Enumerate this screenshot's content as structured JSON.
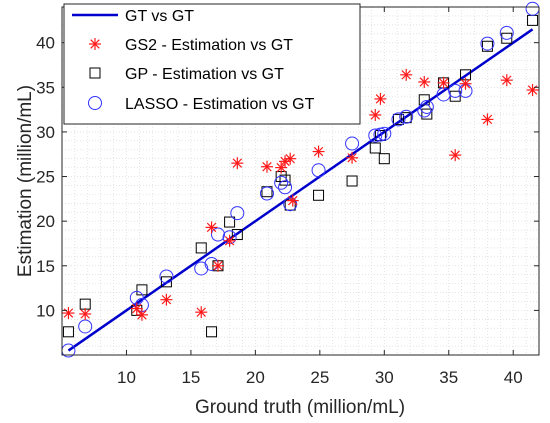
{
  "chart_data": {
    "type": "scatter",
    "xlabel": "Ground truth (million/mL)",
    "ylabel": "Estimation (million/mL)",
    "xlim": [
      5,
      42
    ],
    "ylim": [
      5,
      44
    ],
    "xticks": [
      10,
      15,
      20,
      25,
      30,
      35,
      40
    ],
    "yticks": [
      10,
      15,
      20,
      25,
      30,
      35,
      40
    ],
    "grid": "dotted",
    "legend_position": "top-left",
    "colors": {
      "gt": "#0000cc",
      "gs2": "#ff1a1a",
      "gp": "#000000",
      "lasso": "#3333ff"
    },
    "series": [
      {
        "name": "GT vs GT",
        "kind": "line",
        "x": [
          5.5,
          41.5
        ],
        "y": [
          5.5,
          41.5
        ]
      },
      {
        "name": "GS2 - Estimation vs GT",
        "kind": "asterisk",
        "points": [
          [
            5.5,
            9.7
          ],
          [
            6.8,
            9.6
          ],
          [
            10.8,
            10.2
          ],
          [
            11.2,
            9.5
          ],
          [
            13.1,
            11.2
          ],
          [
            15.8,
            9.8
          ],
          [
            16.6,
            19.3
          ],
          [
            17.1,
            15.0
          ],
          [
            18.0,
            17.8
          ],
          [
            18.6,
            26.5
          ],
          [
            20.9,
            26.1
          ],
          [
            22.0,
            26.0
          ],
          [
            22.3,
            26.7
          ],
          [
            22.7,
            27.0
          ],
          [
            22.9,
            22.3
          ],
          [
            24.9,
            27.8
          ],
          [
            27.5,
            27.1
          ],
          [
            29.3,
            31.9
          ],
          [
            29.7,
            33.7
          ],
          [
            31.7,
            36.4
          ],
          [
            33.1,
            35.6
          ],
          [
            34.6,
            35.5
          ],
          [
            35.5,
            27.4
          ],
          [
            36.3,
            35.4
          ],
          [
            38.0,
            31.4
          ],
          [
            39.5,
            35.8
          ],
          [
            41.5,
            34.7
          ]
        ]
      },
      {
        "name": "GP - Estimation vs GT",
        "kind": "square",
        "points": [
          [
            5.5,
            7.6
          ],
          [
            6.8,
            10.7
          ],
          [
            10.8,
            10.0
          ],
          [
            11.2,
            12.3
          ],
          [
            13.1,
            13.2
          ],
          [
            15.8,
            17.0
          ],
          [
            16.6,
            7.6
          ],
          [
            17.1,
            15.0
          ],
          [
            18.0,
            19.9
          ],
          [
            18.6,
            18.5
          ],
          [
            20.9,
            23.3
          ],
          [
            22.0,
            25.0
          ],
          [
            22.3,
            24.6
          ],
          [
            22.7,
            21.8
          ],
          [
            24.9,
            22.9
          ],
          [
            27.5,
            24.5
          ],
          [
            29.3,
            28.2
          ],
          [
            29.7,
            29.6
          ],
          [
            30.0,
            27.0
          ],
          [
            31.1,
            31.4
          ],
          [
            31.7,
            31.6
          ],
          [
            33.1,
            33.6
          ],
          [
            33.3,
            32.0
          ],
          [
            34.6,
            35.5
          ],
          [
            35.5,
            34.0
          ],
          [
            36.3,
            36.4
          ],
          [
            38.0,
            39.6
          ],
          [
            39.5,
            40.5
          ],
          [
            41.5,
            42.5
          ]
        ]
      },
      {
        "name": "LASSO - Estimation vs GT",
        "kind": "circle",
        "points": [
          [
            5.5,
            5.5
          ],
          [
            6.8,
            8.2
          ],
          [
            10.8,
            11.4
          ],
          [
            11.2,
            10.6
          ],
          [
            13.1,
            13.8
          ],
          [
            15.8,
            14.7
          ],
          [
            16.6,
            15.2
          ],
          [
            17.1,
            18.5
          ],
          [
            18.0,
            18.2
          ],
          [
            18.6,
            20.9
          ],
          [
            20.9,
            23.1
          ],
          [
            22.0,
            24.3
          ],
          [
            22.3,
            23.8
          ],
          [
            22.7,
            21.9
          ],
          [
            24.9,
            25.7
          ],
          [
            27.5,
            28.7
          ],
          [
            29.3,
            29.6
          ],
          [
            29.7,
            29.7
          ],
          [
            30.0,
            29.8
          ],
          [
            31.1,
            31.4
          ],
          [
            31.7,
            31.7
          ],
          [
            33.1,
            32.4
          ],
          [
            33.3,
            32.8
          ],
          [
            34.6,
            34.2
          ],
          [
            35.5,
            34.6
          ],
          [
            36.3,
            34.6
          ],
          [
            38.0,
            39.9
          ],
          [
            39.5,
            41.1
          ],
          [
            41.5,
            43.8
          ]
        ]
      }
    ]
  }
}
